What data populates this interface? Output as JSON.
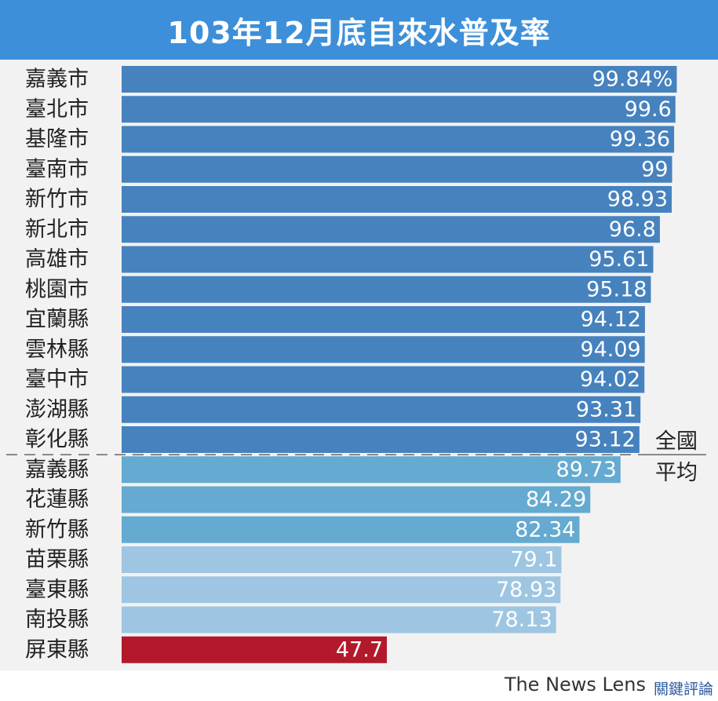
{
  "title": "103年12月底自來水普及率",
  "chart_data": {
    "type": "bar",
    "orientation": "horizontal",
    "categories": [
      "嘉義市",
      "臺北市",
      "基隆市",
      "臺南市",
      "新竹市",
      "新北市",
      "高雄市",
      "桃園市",
      "宜蘭縣",
      "雲林縣",
      "臺中市",
      "澎湖縣",
      "彰化縣",
      "嘉義縣",
      "花蓮縣",
      "新竹縣",
      "苗栗縣",
      "臺東縣",
      "南投縣",
      "屏東縣"
    ],
    "values": [
      99.84,
      99.6,
      99.36,
      99,
      98.93,
      96.8,
      95.61,
      95.18,
      94.12,
      94.09,
      94.02,
      93.31,
      93.12,
      89.73,
      84.29,
      82.34,
      79.1,
      78.93,
      78.13,
      47.7
    ],
    "value_labels": [
      "99.84%",
      "99.6",
      "99.36",
      "99",
      "98.93",
      "96.8",
      "95.61",
      "95.18",
      "94.12",
      "94.09",
      "94.02",
      "93.31",
      "93.12",
      "89.73",
      "84.29",
      "82.34",
      "79.1",
      "78.93",
      "78.13",
      "47.7"
    ],
    "bar_colors": [
      "#4682be",
      "#4682be",
      "#4682be",
      "#4682be",
      "#4682be",
      "#4682be",
      "#4682be",
      "#4682be",
      "#4682be",
      "#4682be",
      "#4682be",
      "#4682be",
      "#4682be",
      "#65aad0",
      "#65aad0",
      "#65aad0",
      "#9ec6e2",
      "#9ec6e2",
      "#9ec6e2",
      "#b2192b"
    ],
    "reference_line": {
      "label_line1": "全國",
      "label_line2": "平均",
      "after_category": "彰化縣",
      "style": "dashed",
      "color": "#666666"
    },
    "xlim": [
      0,
      100
    ],
    "grid": false,
    "legend": "none"
  },
  "footer": {
    "brand_en": "The News Lens",
    "brand_zh": "關鍵評論"
  }
}
